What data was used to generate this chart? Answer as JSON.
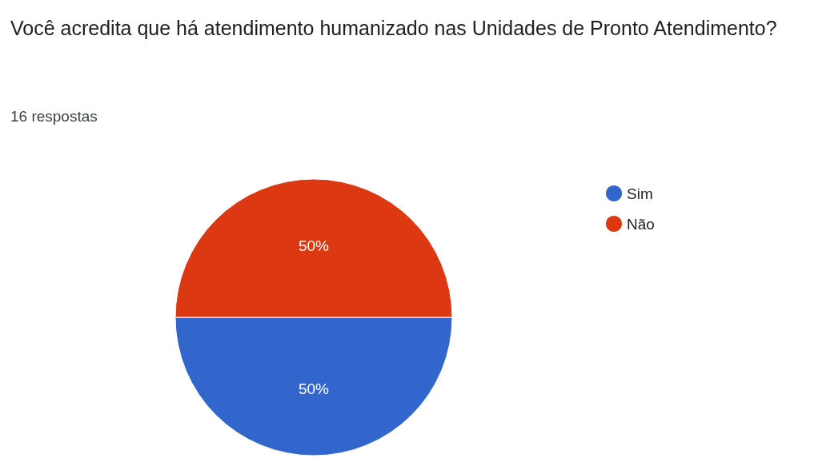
{
  "chart_data": {
    "type": "pie",
    "title": "Você acredita que há atendimento humanizado nas Unidades de Pronto Atendimento?",
    "subtitle": "16 respostas",
    "categories": [
      "Sim",
      "Não"
    ],
    "values": [
      50,
      50
    ],
    "colors": [
      "#3366cc",
      "#dc3912"
    ],
    "value_labels": [
      "50%",
      "50%"
    ],
    "legend": "top right"
  }
}
